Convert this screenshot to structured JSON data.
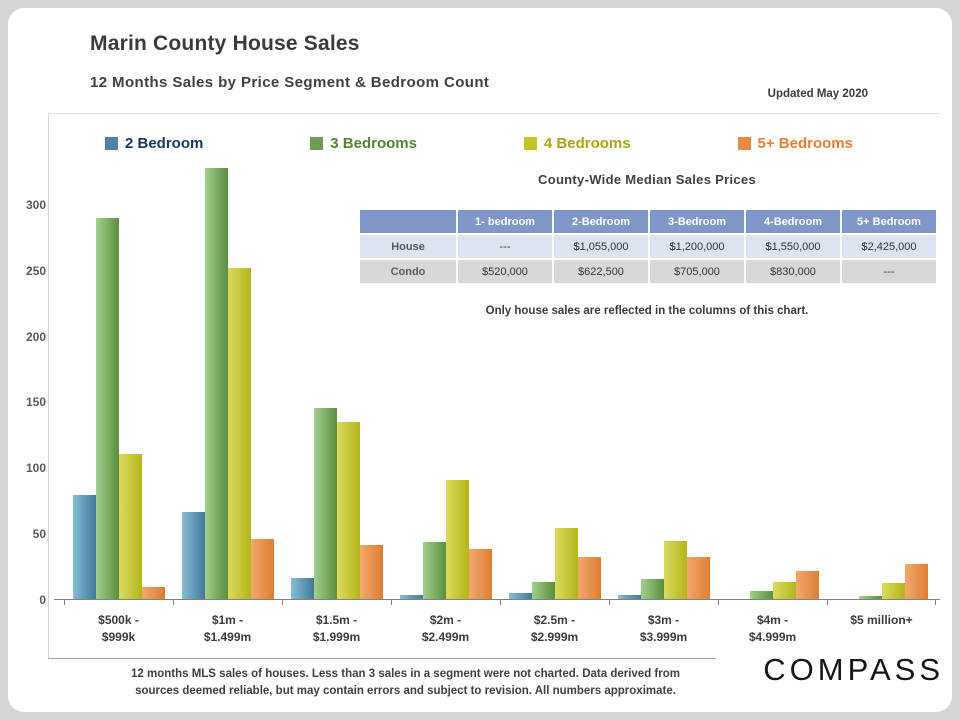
{
  "page": {
    "title": "Marin County House Sales",
    "subtitle": "12 Months  Sales by Price Segment & Bedroom Count",
    "updated": "Updated May 2020",
    "footnote": "12 months MLS sales of houses. Less than 3 sales in a segment were not charted. Data derived from\nsources deemed reliable, but may contain errors and subject to revision. All numbers approximate.",
    "brand": "COMPASS"
  },
  "table": {
    "title": "County-Wide  Median Sales Prices",
    "note": "Only house sales are reflected in the columns of this chart.",
    "headers": [
      "",
      "1- bedroom",
      "2-Bedroom",
      "3-Bedroom",
      "4-Bedroom",
      "5+ Bedroom"
    ],
    "rows": [
      {
        "label": "House",
        "values": [
          "---",
          "$1,055,000",
          "$1,200,000",
          "$1,550,000",
          "$2,425,000"
        ]
      },
      {
        "label": "Condo",
        "values": [
          "$520,000",
          "$622,500",
          "$705,000",
          "$830,000",
          "---"
        ]
      }
    ]
  },
  "chart_data": {
    "type": "bar",
    "title": "Marin County House Sales — 12 Months Sales by Price Segment & Bedroom Count",
    "categories": [
      "$500k -\n$999k",
      "$1m -\n$1.499m",
      "$1.5m -\n$1.999m",
      "$2m -\n$2.499m",
      "$2.5m -\n$2.999m",
      "$3m -\n$3.999m",
      "$4m -\n$4.999m",
      "$5 million+"
    ],
    "series": [
      {
        "name": "2 Bedroom",
        "values": [
          80,
          67,
          17,
          4,
          5,
          4,
          0,
          0
        ],
        "color_light": "#87bed5",
        "color_dark": "#40789a",
        "swatch": "#4e81a3",
        "label_color": "#17375e"
      },
      {
        "name": "3 Bedrooms",
        "values": [
          290,
          328,
          146,
          44,
          14,
          16,
          7,
          3
        ],
        "color_light": "#a3d08e",
        "color_dark": "#5a8e3d",
        "swatch": "#6f9c53",
        "label_color": "#538135"
      },
      {
        "name": "4 Bedrooms",
        "values": [
          111,
          252,
          135,
          91,
          55,
          45,
          14,
          13
        ],
        "color_light": "#d9da5f",
        "color_dark": "#b5b61a",
        "swatch": "#c3c521",
        "label_color": "#a5a913"
      },
      {
        "name": "5+ Bedrooms",
        "values": [
          10,
          46,
          42,
          39,
          33,
          33,
          22,
          27
        ],
        "color_light": "#f2a96e",
        "color_dark": "#df7d31",
        "swatch": "#e78943",
        "label_color": "#ed7d31"
      }
    ],
    "yticks": [
      0,
      50,
      100,
      150,
      200,
      250,
      300
    ],
    "ylim": [
      0,
      334
    ],
    "grid": false,
    "legend_position": "top"
  }
}
